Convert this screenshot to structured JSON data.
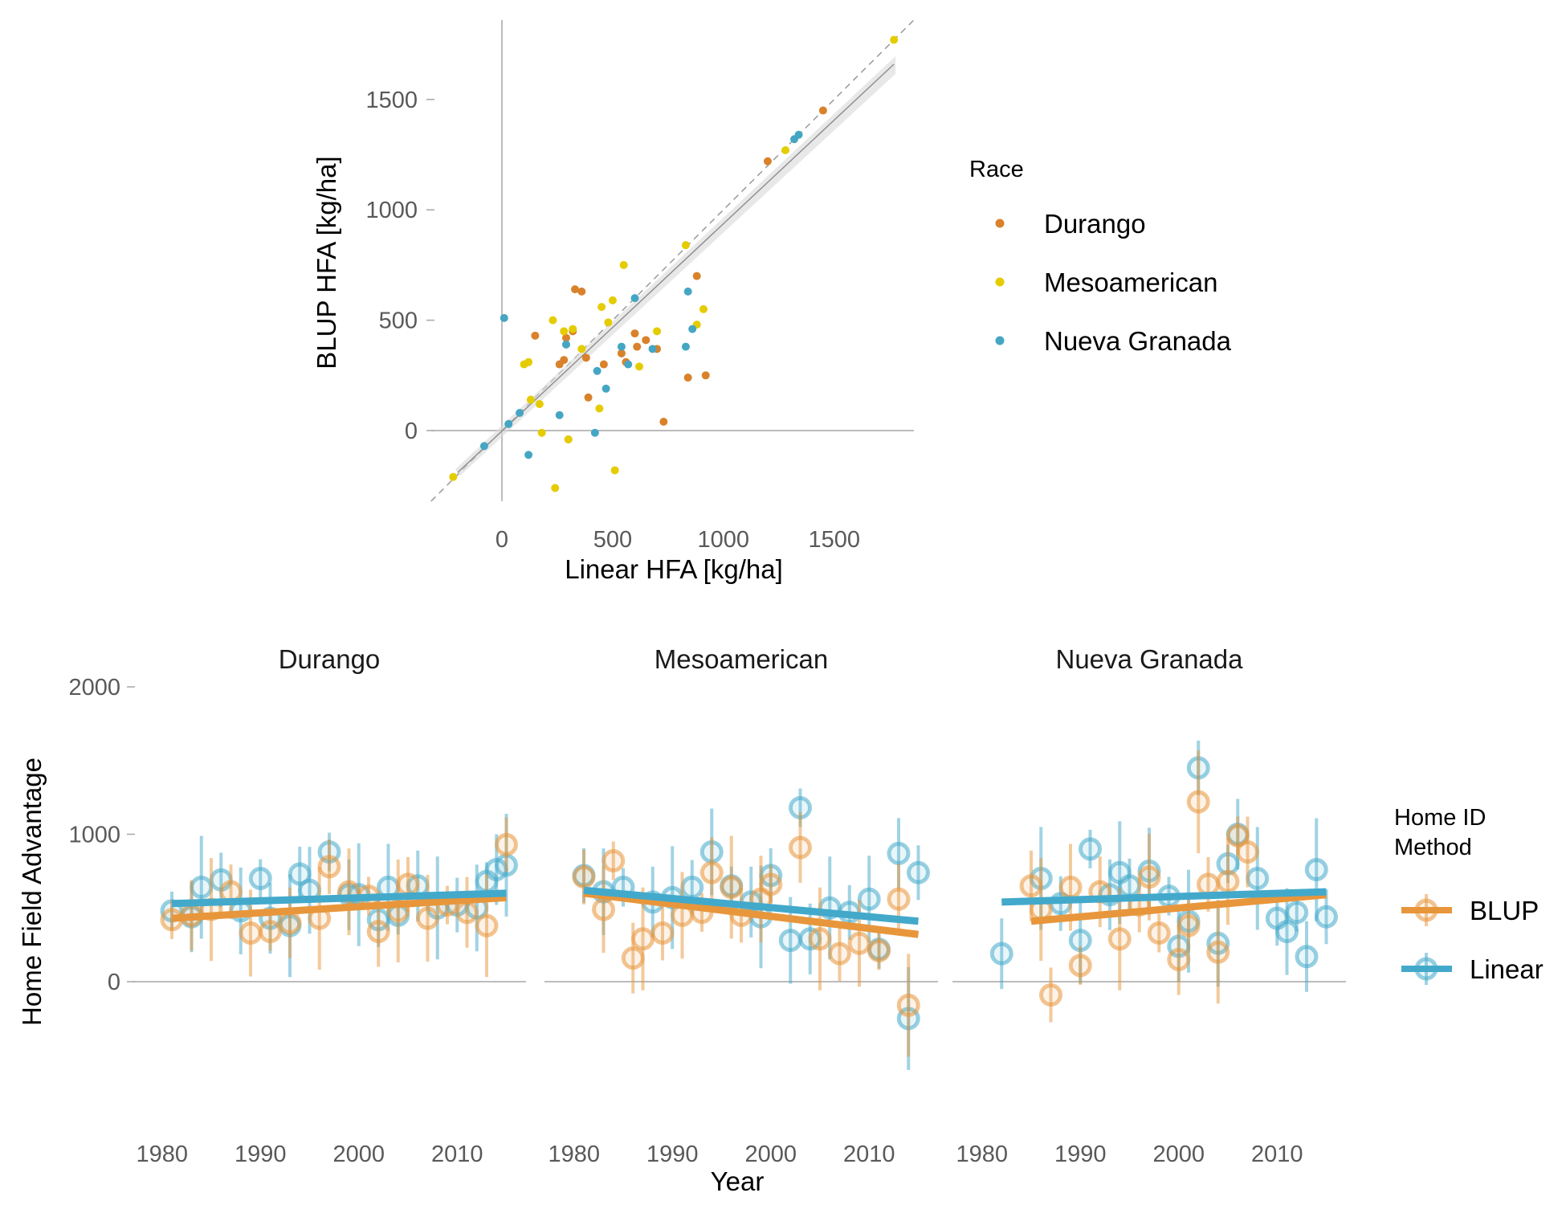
{
  "chart_data": [
    {
      "type": "scatter",
      "title": "",
      "xlabel": "Linear HFA [kg/ha]",
      "ylabel": "BLUP HFA [kg/ha]",
      "xlim": [
        -320,
        1860
      ],
      "ylim": [
        -320,
        1860
      ],
      "xticks": [
        0,
        500,
        1000,
        1500
      ],
      "yticks": [
        0,
        500,
        1000,
        1500
      ],
      "identity_line": true,
      "fit_line": {
        "x": [
          -200,
          1770
        ],
        "y": [
          -190,
          1660
        ]
      },
      "legend": {
        "title": "Race",
        "placement": "right"
      },
      "series": [
        {
          "name": "Durango",
          "color": "#D9822B",
          "points": [
            [
              290,
              420
            ],
            [
              330,
              640
            ],
            [
              360,
              630
            ],
            [
              600,
              440
            ],
            [
              610,
              380
            ],
            [
              650,
              410
            ],
            [
              700,
              370
            ],
            [
              730,
              40
            ],
            [
              840,
              240
            ],
            [
              880,
              700
            ],
            [
              920,
              250
            ],
            [
              150,
              430
            ],
            [
              280,
              320
            ],
            [
              300,
              -40
            ],
            [
              390,
              150
            ],
            [
              460,
              300
            ],
            [
              540,
              350
            ],
            [
              380,
              330
            ],
            [
              560,
              310
            ],
            [
              1450,
              1450
            ],
            [
              1200,
              1220
            ],
            [
              320,
              450
            ],
            [
              260,
              300
            ]
          ]
        },
        {
          "name": "Mesoamerican",
          "color": "#E5CC00",
          "points": [
            [
              -220,
              -210
            ],
            [
              100,
              300
            ],
            [
              120,
              310
            ],
            [
              170,
              120
            ],
            [
              180,
              -10
            ],
            [
              230,
              500
            ],
            [
              240,
              -260
            ],
            [
              280,
              450
            ],
            [
              300,
              -40
            ],
            [
              320,
              460
            ],
            [
              360,
              370
            ],
            [
              440,
              100
            ],
            [
              450,
              560
            ],
            [
              500,
              590
            ],
            [
              510,
              -180
            ],
            [
              550,
              750
            ],
            [
              620,
              290
            ],
            [
              700,
              450
            ],
            [
              880,
              480
            ],
            [
              910,
              550
            ],
            [
              1770,
              1770
            ],
            [
              1280,
              1270
            ],
            [
              130,
              140
            ],
            [
              480,
              490
            ],
            [
              830,
              840
            ]
          ]
        },
        {
          "name": "Nueva Granada",
          "color": "#45A6C3",
          "points": [
            [
              10,
              510
            ],
            [
              120,
              -110
            ],
            [
              260,
              70
            ],
            [
              290,
              390
            ],
            [
              420,
              -10
            ],
            [
              430,
              270
            ],
            [
              470,
              190
            ],
            [
              540,
              380
            ],
            [
              570,
              300
            ],
            [
              680,
              370
            ],
            [
              840,
              630
            ],
            [
              830,
              380
            ],
            [
              860,
              460
            ],
            [
              -80,
              -70
            ],
            [
              80,
              80
            ],
            [
              30,
              30
            ],
            [
              1340,
              1340
            ],
            [
              1320,
              1320
            ],
            [
              600,
              600
            ]
          ]
        }
      ]
    },
    {
      "type": "scatter",
      "subtype": "faceted-trend",
      "title": "",
      "xlabel": "Year",
      "ylabel": "Home Field Advantage",
      "xlim": [
        1977,
        2017
      ],
      "ylim": [
        -850,
        2050
      ],
      "xticks": [
        1980,
        1990,
        2000,
        2010
      ],
      "yticks": [
        0,
        1000,
        2000
      ],
      "legend": {
        "title": "Home ID Method",
        "title_lines": [
          "Home ID",
          "Method"
        ],
        "placement": "right"
      },
      "series_meta": [
        {
          "name": "BLUP",
          "color": "#E8963B"
        },
        {
          "name": "Linear",
          "color": "#43A9CB"
        }
      ],
      "facets": [
        {
          "title": "Durango",
          "trend": {
            "BLUP": [
              [
                1981,
                430
              ],
              [
                2015,
                570
              ]
            ],
            "Linear": [
              [
                1981,
                530
              ],
              [
                2015,
                600
              ]
            ]
          },
          "BLUP": [
            [
              1981,
              420
            ],
            [
              1983,
              450
            ],
            [
              1985,
              490
            ],
            [
              1987,
              610
            ],
            [
              1989,
              330
            ],
            [
              1991,
              340
            ],
            [
              1993,
              400
            ],
            [
              1996,
              430
            ],
            [
              1997,
              780
            ],
            [
              1999,
              610
            ],
            [
              2001,
              580
            ],
            [
              2002,
              340
            ],
            [
              2004,
              480
            ],
            [
              2005,
              660
            ],
            [
              2007,
              430
            ],
            [
              2009,
              520
            ],
            [
              2011,
              470
            ],
            [
              2013,
              380
            ],
            [
              2015,
              930
            ]
          ],
          "Linear": [
            [
              1981,
              480
            ],
            [
              1983,
              440
            ],
            [
              1984,
              640
            ],
            [
              1986,
              690
            ],
            [
              1988,
              480
            ],
            [
              1990,
              700
            ],
            [
              1991,
              430
            ],
            [
              1993,
              380
            ],
            [
              1994,
              730
            ],
            [
              1995,
              620
            ],
            [
              1997,
              880
            ],
            [
              1999,
              590
            ],
            [
              2000,
              590
            ],
            [
              2002,
              420
            ],
            [
              2003,
              640
            ],
            [
              2004,
              450
            ],
            [
              2006,
              650
            ],
            [
              2008,
              500
            ],
            [
              2010,
              520
            ],
            [
              2012,
              500
            ],
            [
              2013,
              680
            ],
            [
              2014,
              760
            ],
            [
              2015,
              790
            ]
          ]
        },
        {
          "title": "Mesoamerican",
          "trend": {
            "BLUP": [
              [
                1981,
                600
              ],
              [
                2015,
                320
              ]
            ],
            "Linear": [
              [
                1981,
                620
              ],
              [
                2015,
                410
              ]
            ]
          },
          "BLUP": [
            [
              1981,
              710
            ],
            [
              1983,
              490
            ],
            [
              1984,
              820
            ],
            [
              1986,
              160
            ],
            [
              1987,
              290
            ],
            [
              1989,
              330
            ],
            [
              1991,
              450
            ],
            [
              1993,
              470
            ],
            [
              1994,
              740
            ],
            [
              1996,
              640
            ],
            [
              1997,
              450
            ],
            [
              1999,
              560
            ],
            [
              2000,
              660
            ],
            [
              2003,
              910
            ],
            [
              2005,
              290
            ],
            [
              2007,
              190
            ],
            [
              2009,
              260
            ],
            [
              2011,
              210
            ],
            [
              2013,
              560
            ],
            [
              2014,
              -160
            ]
          ],
          "Linear": [
            [
              1981,
              720
            ],
            [
              1983,
              610
            ],
            [
              1985,
              640
            ],
            [
              1988,
              540
            ],
            [
              1990,
              570
            ],
            [
              1992,
              640
            ],
            [
              1994,
              880
            ],
            [
              1996,
              650
            ],
            [
              1998,
              540
            ],
            [
              1999,
              440
            ],
            [
              2000,
              720
            ],
            [
              2002,
              280
            ],
            [
              2003,
              1180
            ],
            [
              2004,
              290
            ],
            [
              2006,
              500
            ],
            [
              2008,
              470
            ],
            [
              2010,
              560
            ],
            [
              2011,
              220
            ],
            [
              2013,
              870
            ],
            [
              2014,
              -250
            ],
            [
              2015,
              740
            ]
          ]
        },
        {
          "title": "Nueva Granada",
          "trend": {
            "BLUP": [
              [
                1985,
                410
              ],
              [
                2015,
                590
              ]
            ],
            "Linear": [
              [
                1982,
                540
              ],
              [
                2015,
                610
              ]
            ]
          },
          "BLUP": [
            [
              1985,
              650
            ],
            [
              1986,
              490
            ],
            [
              1987,
              -90
            ],
            [
              1989,
              640
            ],
            [
              1990,
              110
            ],
            [
              1992,
              610
            ],
            [
              1994,
              290
            ],
            [
              1996,
              520
            ],
            [
              1997,
              710
            ],
            [
              1998,
              330
            ],
            [
              2000,
              150
            ],
            [
              2002,
              1220
            ],
            [
              2003,
              660
            ],
            [
              2005,
              680
            ],
            [
              2006,
              990
            ],
            [
              2007,
              880
            ],
            [
              2004,
              200
            ],
            [
              2001,
              380
            ]
          ],
          "Linear": [
            [
              1982,
              190
            ],
            [
              1986,
              700
            ],
            [
              1988,
              530
            ],
            [
              1990,
              280
            ],
            [
              1991,
              900
            ],
            [
              1993,
              590
            ],
            [
              1994,
              740
            ],
            [
              1995,
              650
            ],
            [
              1997,
              750
            ],
            [
              1999,
              580
            ],
            [
              2000,
              240
            ],
            [
              2001,
              410
            ],
            [
              2002,
              1450
            ],
            [
              2004,
              260
            ],
            [
              2005,
              800
            ],
            [
              2006,
              1000
            ],
            [
              2008,
              700
            ],
            [
              2010,
              430
            ],
            [
              2011,
              340
            ],
            [
              2012,
              470
            ],
            [
              2013,
              170
            ],
            [
              2014,
              760
            ],
            [
              2015,
              440
            ]
          ]
        }
      ]
    }
  ]
}
